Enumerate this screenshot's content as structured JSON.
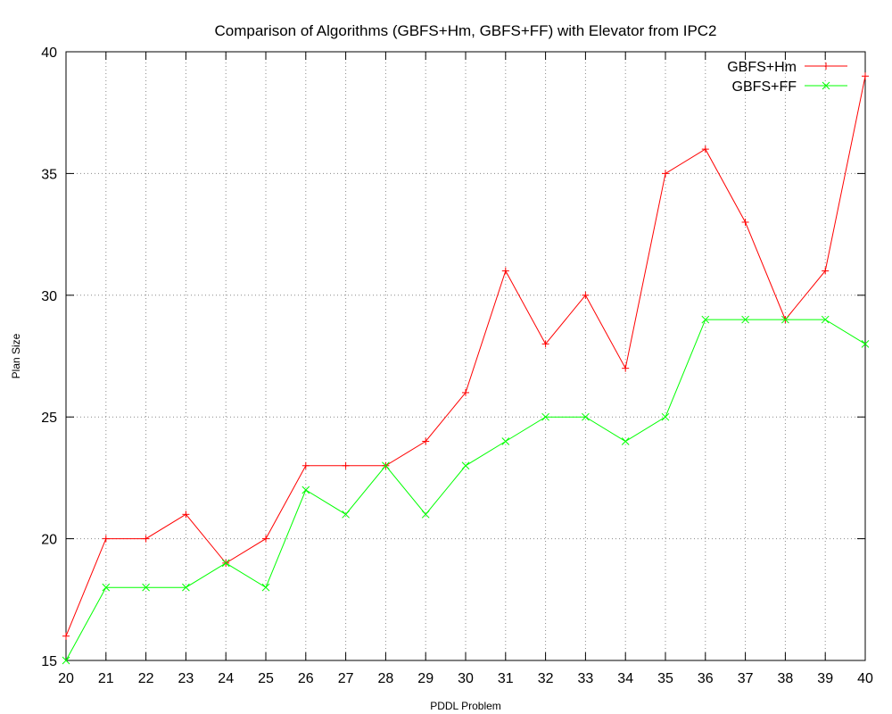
{
  "chart_data": {
    "type": "line",
    "title": "Comparison of Algorithms (GBFS+Hm, GBFS+FF) with Elevator from IPC2",
    "xlabel": "PDDL Problem",
    "ylabel": "Plan Size",
    "xlim": [
      20,
      40
    ],
    "ylim": [
      15,
      40
    ],
    "xticks": [
      20,
      21,
      22,
      23,
      24,
      25,
      26,
      27,
      28,
      29,
      30,
      31,
      32,
      33,
      34,
      35,
      36,
      37,
      38,
      39,
      40
    ],
    "yticks": [
      15,
      20,
      25,
      30,
      35,
      40
    ],
    "grid": true,
    "legend_position": "top-right",
    "x": [
      20,
      21,
      22,
      23,
      24,
      25,
      26,
      27,
      28,
      29,
      30,
      31,
      32,
      33,
      34,
      35,
      36,
      37,
      38,
      39,
      40
    ],
    "series": [
      {
        "name": "GBFS+Hm",
        "color": "#ff0000",
        "marker": "plus",
        "values": [
          16,
          20,
          20,
          21,
          19,
          20,
          23,
          23,
          23,
          24,
          26,
          31,
          28,
          30,
          27,
          35,
          36,
          33,
          29,
          31,
          39
        ]
      },
      {
        "name": "GBFS+FF",
        "color": "#00ff00",
        "marker": "cross",
        "values": [
          15,
          18,
          18,
          18,
          19,
          18,
          22,
          21,
          23,
          21,
          23,
          24,
          25,
          25,
          24,
          25,
          29,
          29,
          29,
          29,
          28
        ]
      }
    ]
  }
}
